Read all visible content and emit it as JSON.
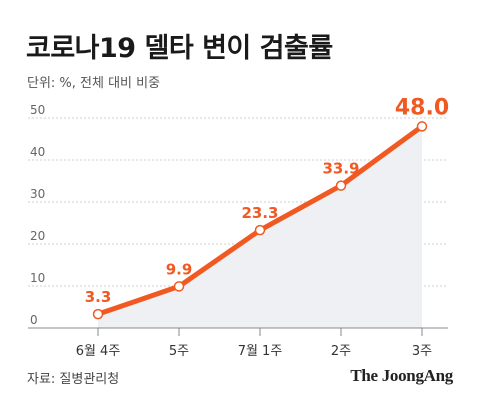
{
  "title": "코로나19 델타 변이 검출률",
  "subtitle": "단위: %, 전체 대비 비중",
  "source": "자료: 질병관리청",
  "publisher": "The JoongAng",
  "colors": {
    "line": "#f05a22",
    "label": "#f05a22",
    "area": "#eef0f3",
    "grid": "#cfcfcf",
    "axis": "#888888",
    "tick_text": "#666666"
  },
  "chart_data": {
    "type": "line",
    "title": "코로나19 델타 변이 검출률",
    "subtitle": "단위: %, 전체 대비 비중",
    "categories": [
      "6월 4주",
      "5주",
      "7월 1주",
      "2주",
      "3주"
    ],
    "series": [
      {
        "values": [
          3.3,
          9.9,
          23.3,
          33.9,
          48.0
        ],
        "labels": [
          "3.3",
          "9.9",
          "23.3",
          "33.9",
          "48.0"
        ]
      }
    ],
    "y_ticks": [
      0,
      10,
      20,
      30,
      40,
      50
    ],
    "ylim": [
      0,
      50
    ],
    "grid": true,
    "area_fill": true,
    "xlabel": "",
    "ylabel": ""
  }
}
